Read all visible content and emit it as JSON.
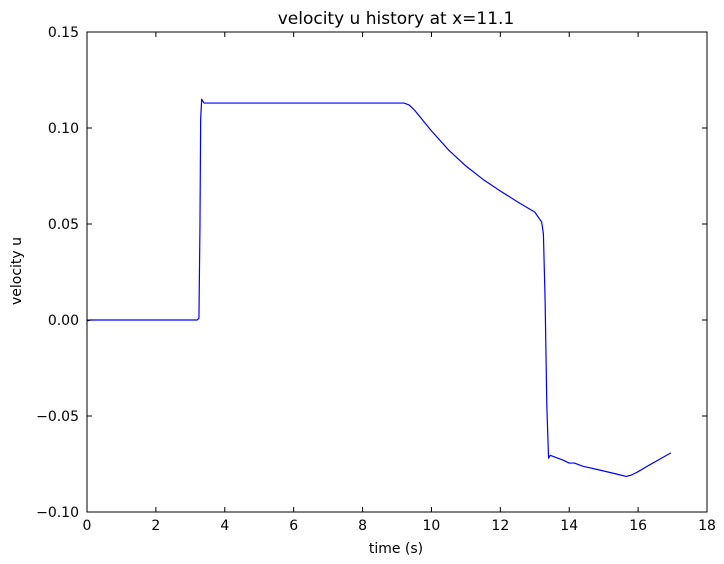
{
  "chart_data": {
    "type": "line",
    "title": "velocity u history at x=11.1",
    "xlabel": "time (s)",
    "ylabel": "velocity u",
    "xlim": [
      0,
      18
    ],
    "ylim": [
      -0.1,
      0.15
    ],
    "xticks": [
      0,
      2,
      4,
      6,
      8,
      10,
      12,
      14,
      16,
      18
    ],
    "xtick_labels": [
      "0",
      "2",
      "4",
      "6",
      "8",
      "10",
      "12",
      "14",
      "16",
      "18"
    ],
    "yticks": [
      -0.1,
      -0.05,
      0.0,
      0.05,
      0.1,
      0.15
    ],
    "ytick_labels": [
      "−0.10",
      "−0.05",
      "0.00",
      "0.05",
      "0.10",
      "0.15"
    ],
    "grid": false,
    "line_color": "#0000ff",
    "series": [
      {
        "x": [
          0,
          0.1,
          3.2,
          3.25,
          3.28,
          3.3,
          3.33,
          3.36,
          3.4,
          3.45,
          5.0,
          7.0,
          9.0,
          9.2,
          9.35,
          9.5,
          10.0,
          10.5,
          11.0,
          11.5,
          12.0,
          12.5,
          13.0,
          13.2,
          13.25,
          13.3,
          13.35,
          13.4,
          13.45,
          13.6,
          13.8,
          14.0,
          14.15,
          14.4,
          14.8,
          15.2,
          15.5,
          15.65,
          15.8,
          16.0,
          16.3,
          16.6,
          16.95
        ],
        "y": [
          -0.0005,
          0.0,
          0.0,
          0.001,
          0.05,
          0.105,
          0.115,
          0.114,
          0.113,
          0.113,
          0.113,
          0.113,
          0.113,
          0.113,
          0.112,
          0.1095,
          0.0985,
          0.0885,
          0.0802,
          0.0732,
          0.0672,
          0.0615,
          0.0562,
          0.051,
          0.045,
          0.01,
          -0.045,
          -0.072,
          -0.0705,
          -0.0715,
          -0.0728,
          -0.0745,
          -0.0745,
          -0.0762,
          -0.0778,
          -0.0795,
          -0.0808,
          -0.0815,
          -0.0808,
          -0.079,
          -0.0758,
          -0.0728,
          -0.0692
        ]
      }
    ]
  }
}
